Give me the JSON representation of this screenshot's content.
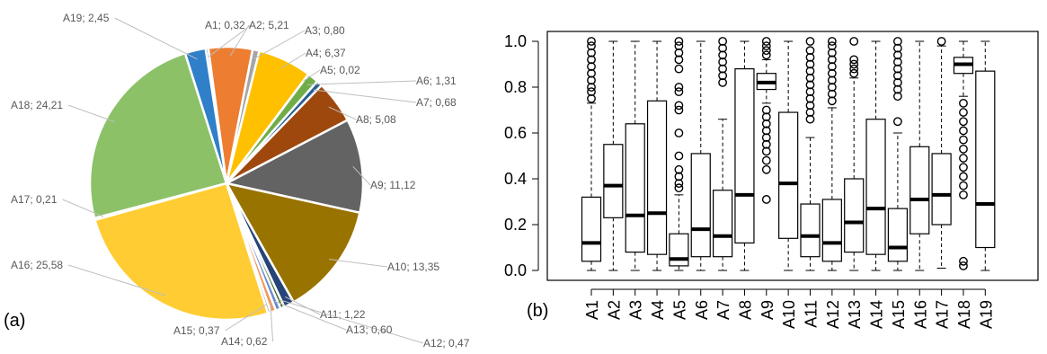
{
  "panels": {
    "a": "(a)",
    "b": "(b)"
  },
  "chart_data": [
    {
      "type": "pie",
      "categories": [
        "A1",
        "A2",
        "A3",
        "A4",
        "A5",
        "A6",
        "A7",
        "A8",
        "A9",
        "A10",
        "A11",
        "A12",
        "A13",
        "A14",
        "A15",
        "A16",
        "A17",
        "A18",
        "A19"
      ],
      "values": [
        0.32,
        5.21,
        0.8,
        6.37,
        0.02,
        1.31,
        0.68,
        5.08,
        11.12,
        13.35,
        1.22,
        0.47,
        0.6,
        0.62,
        0.37,
        25.58,
        0.21,
        24.21,
        2.45
      ],
      "labels": [
        "A1; 0,32",
        "A2; 5,21",
        "A3; 0,80",
        "A4; 6,37",
        "A5; 0,02",
        "A6; 1,31",
        "A7; 0,68",
        "A8; 5,08",
        "A9; 11,12",
        "A10; 13,35",
        "A11; 1,22",
        "A12; 0,47",
        "A13; 0,60",
        "A14; 0,62",
        "A15; 0,37",
        "A16; 25,58",
        "A17; 0,21",
        "A18; 24,21",
        "A19; 2,45"
      ],
      "colors": [
        "#2e75b6",
        "#ed7d31",
        "#a5a5a5",
        "#ffc000",
        "#4472c4",
        "#70ad47",
        "#255e91",
        "#9e480e",
        "#636363",
        "#997300",
        "#264478",
        "#43682b",
        "#698ed0",
        "#f1975a",
        "#b7b7b7",
        "#ffcd33",
        "#5b9bd5",
        "#8cc168",
        "#2f7fc9"
      ]
    },
    {
      "type": "boxplot",
      "categories": [
        "A1",
        "A2",
        "A3",
        "A4",
        "A5",
        "A6",
        "A7",
        "A8",
        "A9",
        "A10",
        "A11",
        "A12",
        "A13",
        "A14",
        "A15",
        "A16",
        "A17",
        "A18",
        "A19"
      ],
      "yticks": [
        "0.0",
        "0.2",
        "0.4",
        "0.6",
        "0.8",
        "1.0"
      ],
      "ylim": [
        0,
        1
      ],
      "boxes": [
        {
          "q1": 0.04,
          "median": 0.12,
          "q3": 0.32,
          "lo": 0.0,
          "hi": 0.73,
          "outliers": [
            0.75,
            0.78,
            0.8,
            0.83,
            0.86,
            0.89,
            0.92,
            0.95,
            0.98,
            1.0
          ]
        },
        {
          "q1": 0.23,
          "median": 0.37,
          "q3": 0.55,
          "lo": 0.0,
          "hi": 1.0,
          "outliers": []
        },
        {
          "q1": 0.08,
          "median": 0.24,
          "q3": 0.64,
          "lo": 0.0,
          "hi": 1.0,
          "outliers": []
        },
        {
          "q1": 0.07,
          "median": 0.25,
          "q3": 0.74,
          "lo": 0.0,
          "hi": 1.0,
          "outliers": []
        },
        {
          "q1": 0.02,
          "median": 0.05,
          "q3": 0.16,
          "lo": 0.0,
          "hi": 0.33,
          "outliers": [
            0.36,
            0.38,
            0.41,
            0.44,
            0.5,
            0.6,
            0.7,
            0.72,
            0.78,
            0.8,
            0.88,
            0.92,
            0.95,
            0.98,
            1.0
          ]
        },
        {
          "q1": 0.06,
          "median": 0.18,
          "q3": 0.51,
          "lo": 0.0,
          "hi": 1.0,
          "outliers": []
        },
        {
          "q1": 0.06,
          "median": 0.15,
          "q3": 0.35,
          "lo": 0.0,
          "hi": 0.66,
          "outliers": [
            0.82,
            0.85,
            0.88,
            0.91,
            0.94,
            0.97,
            1.0
          ]
        },
        {
          "q1": 0.12,
          "median": 0.33,
          "q3": 0.88,
          "lo": 0.0,
          "hi": 1.0,
          "outliers": []
        },
        {
          "q1": 0.79,
          "median": 0.82,
          "q3": 0.86,
          "lo": 0.73,
          "hi": 0.92,
          "outliers": [
            0.31,
            0.44,
            0.48,
            0.52,
            0.55,
            0.58,
            0.61,
            0.64,
            0.67,
            0.7,
            0.94,
            0.96,
            0.98,
            1.0
          ]
        },
        {
          "q1": 0.14,
          "median": 0.38,
          "q3": 0.69,
          "lo": 0.0,
          "hi": 1.0,
          "outliers": []
        },
        {
          "q1": 0.06,
          "median": 0.15,
          "q3": 0.29,
          "lo": 0.0,
          "hi": 0.58,
          "outliers": [
            0.66,
            0.69,
            0.72,
            0.75,
            0.78,
            0.81,
            0.84,
            0.87,
            0.9,
            0.93,
            0.96,
            1.0
          ]
        },
        {
          "q1": 0.04,
          "median": 0.12,
          "q3": 0.31,
          "lo": 0.0,
          "hi": 0.71,
          "outliers": [
            0.74,
            0.77,
            0.8,
            0.83,
            0.86,
            0.89,
            0.92,
            0.95,
            0.98,
            1.0
          ]
        },
        {
          "q1": 0.08,
          "median": 0.21,
          "q3": 0.4,
          "lo": 0.0,
          "hi": 0.84,
          "outliers": [
            0.86,
            0.88,
            0.9,
            0.92,
            1.0
          ]
        },
        {
          "q1": 0.07,
          "median": 0.27,
          "q3": 0.66,
          "lo": 0.0,
          "hi": 1.0,
          "outliers": []
        },
        {
          "q1": 0.04,
          "median": 0.1,
          "q3": 0.27,
          "lo": 0.0,
          "hi": 0.6,
          "outliers": [
            0.65,
            0.76,
            0.79,
            0.82,
            0.85,
            0.88,
            0.91,
            0.94,
            0.97,
            1.0
          ]
        },
        {
          "q1": 0.16,
          "median": 0.31,
          "q3": 0.54,
          "lo": 0.0,
          "hi": 1.0,
          "outliers": []
        },
        {
          "q1": 0.2,
          "median": 0.33,
          "q3": 0.51,
          "lo": 0.01,
          "hi": 0.98,
          "outliers": [
            1.0
          ]
        },
        {
          "q1": 0.86,
          "median": 0.9,
          "q3": 0.93,
          "lo": 0.76,
          "hi": 1.0,
          "outliers": [
            0.02,
            0.04,
            0.33,
            0.37,
            0.41,
            0.45,
            0.49,
            0.53,
            0.57,
            0.61,
            0.65,
            0.69,
            0.73
          ]
        },
        {
          "q1": 0.1,
          "median": 0.29,
          "q3": 0.87,
          "lo": 0.0,
          "hi": 1.0,
          "outliers": []
        }
      ]
    }
  ]
}
